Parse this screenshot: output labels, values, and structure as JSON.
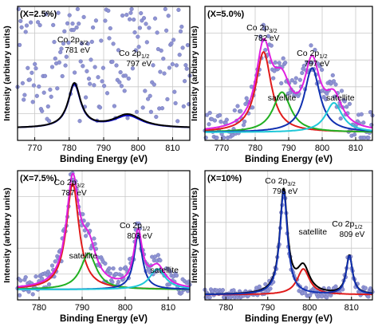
{
  "chart_data": [
    {
      "type": "line",
      "panel_label": "(X=2.5%)",
      "xlabel": "Binding Energy (eV)",
      "ylabel": "Intensity (arbitary units)",
      "xlim": [
        765,
        815
      ],
      "ylim": [
        0,
        1
      ],
      "xticks": [
        "770",
        "780",
        "790",
        "800",
        "810"
      ],
      "grid": true,
      "annotations": [
        {
          "main": "Co 2p",
          "sub": "3/2",
          "text": "781 eV",
          "x": 781
        },
        {
          "main": "Co 2p",
          "sub": "1/2",
          "text": "797 eV",
          "x": 797
        }
      ],
      "series": [
        {
          "color": "#0000cc",
          "peaks": [
            {
              "center": 781.5,
              "amp": 0.32,
              "width": 2.2
            },
            {
              "center": 797,
              "amp": 0.09,
              "width": 5
            }
          ],
          "baseline": 0.09
        },
        {
          "color": "#000000",
          "peaks": [
            {
              "center": 781.5,
              "amp": 0.33,
              "width": 2.2
            },
            {
              "center": 797,
              "amp": 0.1,
              "width": 5
            }
          ],
          "baseline": 0.09
        }
      ],
      "scatter_color": "#8f94d4",
      "scatter_noise": 0.55
    },
    {
      "type": "line",
      "panel_label": "(X=5.0%)",
      "xlabel": "Binding Energy (eV)",
      "ylabel": "Intensity (arbitary units)",
      "xlim": [
        765,
        815
      ],
      "ylim": [
        0,
        1
      ],
      "xticks": [
        "770",
        "780",
        "790",
        "800",
        "810"
      ],
      "grid": true,
      "annotations": [
        {
          "main": "Co 2p",
          "sub": "3/2",
          "text": "782 eV",
          "x": 782
        },
        {
          "main": "Co 2p",
          "sub": "1/2",
          "text": "797 eV",
          "x": 797
        },
        {
          "main": "satellite",
          "sub": "",
          "text": "",
          "x": 788
        },
        {
          "main": "satellite",
          "sub": "",
          "text": "",
          "x": 804
        }
      ],
      "series": [
        {
          "color": "#e01b1b",
          "peaks": [
            {
              "center": 782.5,
              "amp": 0.6,
              "width": 2.8
            }
          ],
          "baseline": 0.06
        },
        {
          "color": "#22b022",
          "peaks": [
            {
              "center": 788,
              "amp": 0.3,
              "width": 3.2
            }
          ],
          "baseline": 0.06
        },
        {
          "color": "#1030b0",
          "peaks": [
            {
              "center": 797,
              "amp": 0.48,
              "width": 2.8
            }
          ],
          "baseline": 0.06
        },
        {
          "color": "#20c8d8",
          "peaks": [
            {
              "center": 803.5,
              "amp": 0.22,
              "width": 3
            }
          ],
          "baseline": 0.06
        },
        {
          "color": "#e020e0",
          "peaks": [
            {
              "center": 782.5,
              "amp": 0.6,
              "width": 2.8
            },
            {
              "center": 788,
              "amp": 0.3,
              "width": 3.2
            },
            {
              "center": 797,
              "amp": 0.48,
              "width": 2.8
            },
            {
              "center": 803.5,
              "amp": 0.22,
              "width": 3
            }
          ],
          "baseline": 0.06
        }
      ],
      "scatter_color": "#8f94d4",
      "scatter_noise": 0.12
    },
    {
      "type": "line",
      "panel_label": "(X=7.5%)",
      "xlabel": "Binding Energy (eV)",
      "ylabel": "Intensity (arbitary units)",
      "xlim": [
        775,
        815
      ],
      "ylim": [
        0,
        1
      ],
      "xticks": [
        "780",
        "790",
        "800",
        "810"
      ],
      "grid": true,
      "annotations": [
        {
          "main": "Co 2p",
          "sub": "3/2",
          "text": "787 eV",
          "x": 787
        },
        {
          "main": "Co 2p",
          "sub": "1/2",
          "text": "803 eV",
          "x": 803
        },
        {
          "main": "satellite",
          "sub": "",
          "text": "",
          "x": 791
        },
        {
          "main": "satellite",
          "sub": "",
          "text": "",
          "x": 808
        }
      ],
      "series": [
        {
          "color": "#e01b1b",
          "peaks": [
            {
              "center": 787.8,
              "amp": 0.82,
              "width": 1.8
            }
          ],
          "baseline": 0.08
        },
        {
          "color": "#22b022",
          "peaks": [
            {
              "center": 791.5,
              "amp": 0.28,
              "width": 2.2
            }
          ],
          "baseline": 0.08
        },
        {
          "color": "#1030b0",
          "peaks": [
            {
              "center": 803,
              "amp": 0.42,
              "width": 1.2
            }
          ],
          "baseline": 0.08
        },
        {
          "color": "#20c8d8",
          "peaks": [
            {
              "center": 807.5,
              "amp": 0.16,
              "width": 2.2
            }
          ],
          "baseline": 0.08
        },
        {
          "color": "#e020e0",
          "peaks": [
            {
              "center": 787.8,
              "amp": 0.82,
              "width": 1.8
            },
            {
              "center": 791.5,
              "amp": 0.28,
              "width": 2.2
            },
            {
              "center": 803,
              "amp": 0.42,
              "width": 1.2
            },
            {
              "center": 807.5,
              "amp": 0.16,
              "width": 2.2
            }
          ],
          "baseline": 0.08
        }
      ],
      "scatter_color": "#8f94d4",
      "scatter_noise": 0.08
    },
    {
      "type": "line",
      "panel_label": "(X=10%)",
      "xlabel": "Binding Energy (eV)",
      "ylabel": "Intensity (arbitary units)",
      "xlim": [
        775,
        815
      ],
      "ylim": [
        0,
        1
      ],
      "xticks": [
        "780",
        "790",
        "800",
        "810"
      ],
      "grid": true,
      "annotations": [
        {
          "main": "Co 2p",
          "sub": "3/2",
          "text": "793 eV",
          "x": 793
        },
        {
          "main": "satellite",
          "sub": "",
          "text": "",
          "x": 800
        },
        {
          "main": "Co 2p",
          "sub": "1/2",
          "text": "809 eV",
          "x": 809
        }
      ],
      "series": [
        {
          "color": "#e01b1b",
          "peaks": [
            {
              "center": 798.5,
              "amp": 0.2,
              "width": 1.8
            }
          ],
          "baseline": 0.04
        },
        {
          "color": "#000000",
          "peaks": [
            {
              "center": 793.8,
              "amp": 0.8,
              "width": 1.1
            },
            {
              "center": 798.5,
              "amp": 0.2,
              "width": 1.8
            },
            {
              "center": 809.5,
              "amp": 0.3,
              "width": 0.9
            }
          ],
          "baseline": 0.04
        },
        {
          "color": "#1030b0",
          "peaks": [
            {
              "center": 793.8,
              "amp": 0.8,
              "width": 1.1
            },
            {
              "center": 809.5,
              "amp": 0.3,
              "width": 0.9
            }
          ],
          "baseline": 0.04
        }
      ],
      "scatter_color": "#8f94d4",
      "scatter_noise": 0.04
    }
  ]
}
